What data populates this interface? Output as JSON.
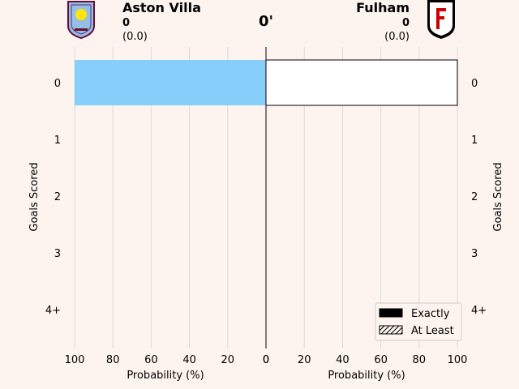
{
  "header": {
    "home_team": "Aston Villa",
    "home_score": "0",
    "home_xg": "(0.0)",
    "away_team": "Fulham",
    "away_score": "0",
    "away_xg": "(0.0)",
    "minute": "0'",
    "home_crest": "aston-villa-crest-icon",
    "away_crest": "fulham-crest-icon"
  },
  "chart_data": {
    "type": "bar",
    "orientation": "horizontal",
    "categories": [
      "0",
      "1",
      "2",
      "3",
      "4+"
    ],
    "ylabel": "Goals Scored",
    "panels": [
      {
        "team": "Aston Villa",
        "xlabel": "Probability (%)",
        "xlim": [
          100,
          0
        ],
        "xticks": [
          "100",
          "80",
          "60",
          "40",
          "20",
          "0"
        ],
        "color": "#87cefa",
        "series": [
          {
            "name": "Exactly",
            "values": [
              100,
              0,
              0,
              0,
              0
            ]
          },
          {
            "name": "At Least",
            "values": [
              100,
              0,
              0,
              0,
              0
            ]
          }
        ]
      },
      {
        "team": "Fulham",
        "xlabel": "Probability (%)",
        "xlim": [
          0,
          100
        ],
        "xticks": [
          "0",
          "20",
          "40",
          "60",
          "80",
          "100"
        ],
        "color": "#ffffff",
        "series": [
          {
            "name": "Exactly",
            "values": [
              100,
              0,
              0,
              0,
              0
            ]
          },
          {
            "name": "At Least",
            "values": [
              100,
              0,
              0,
              0,
              0
            ]
          }
        ]
      }
    ],
    "legend": {
      "position": "bottom-right",
      "entries": [
        "Exactly",
        "At Least"
      ]
    },
    "grid": true
  }
}
